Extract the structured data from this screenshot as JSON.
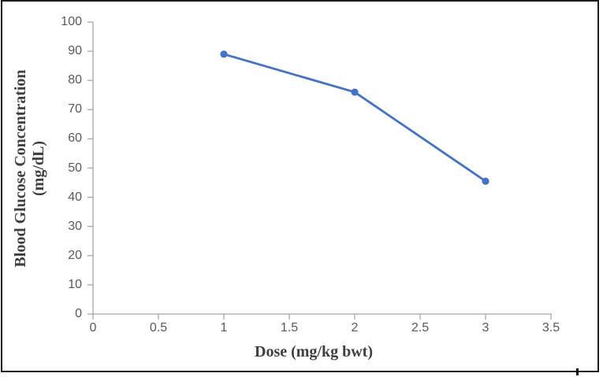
{
  "chart_data": {
    "type": "line",
    "title": "",
    "xlabel": "Dose (mg/kg bwt)",
    "ylabel": "Blood Glucose Concentration (mg/dL)",
    "ylabel_lines": [
      "Blood Glucose Concentration",
      "(mg/dL)"
    ],
    "series": [
      {
        "name": "Blood Glucose Concentration",
        "x": [
          1,
          2,
          3
        ],
        "values": [
          89,
          76,
          45.5
        ]
      }
    ],
    "xlim": [
      0,
      3.5
    ],
    "ylim": [
      0,
      100
    ],
    "x_tick_values": [
      0,
      0.5,
      1,
      1.5,
      2,
      2.5,
      3,
      3.5
    ],
    "x_tick_labels": [
      "0",
      "0.5",
      "1",
      "1.5",
      "2",
      "2.5",
      "3",
      "3.5"
    ],
    "y_tick_values": [
      0,
      10,
      20,
      30,
      40,
      50,
      60,
      70,
      80,
      90,
      100
    ],
    "y_tick_labels": [
      "0",
      "10",
      "20",
      "30",
      "40",
      "50",
      "60",
      "70",
      "80",
      "90",
      "100"
    ],
    "grid": false,
    "legend": "none",
    "marker": "circle",
    "colors": {
      "line": "#4472C4",
      "marker": "#4472C4",
      "axis": "#A6A6A6",
      "tick_label": "#595959",
      "axis_title": "#3F3F3F",
      "frame_border": "#1C1C1C",
      "background": "#FFFFFF"
    }
  }
}
